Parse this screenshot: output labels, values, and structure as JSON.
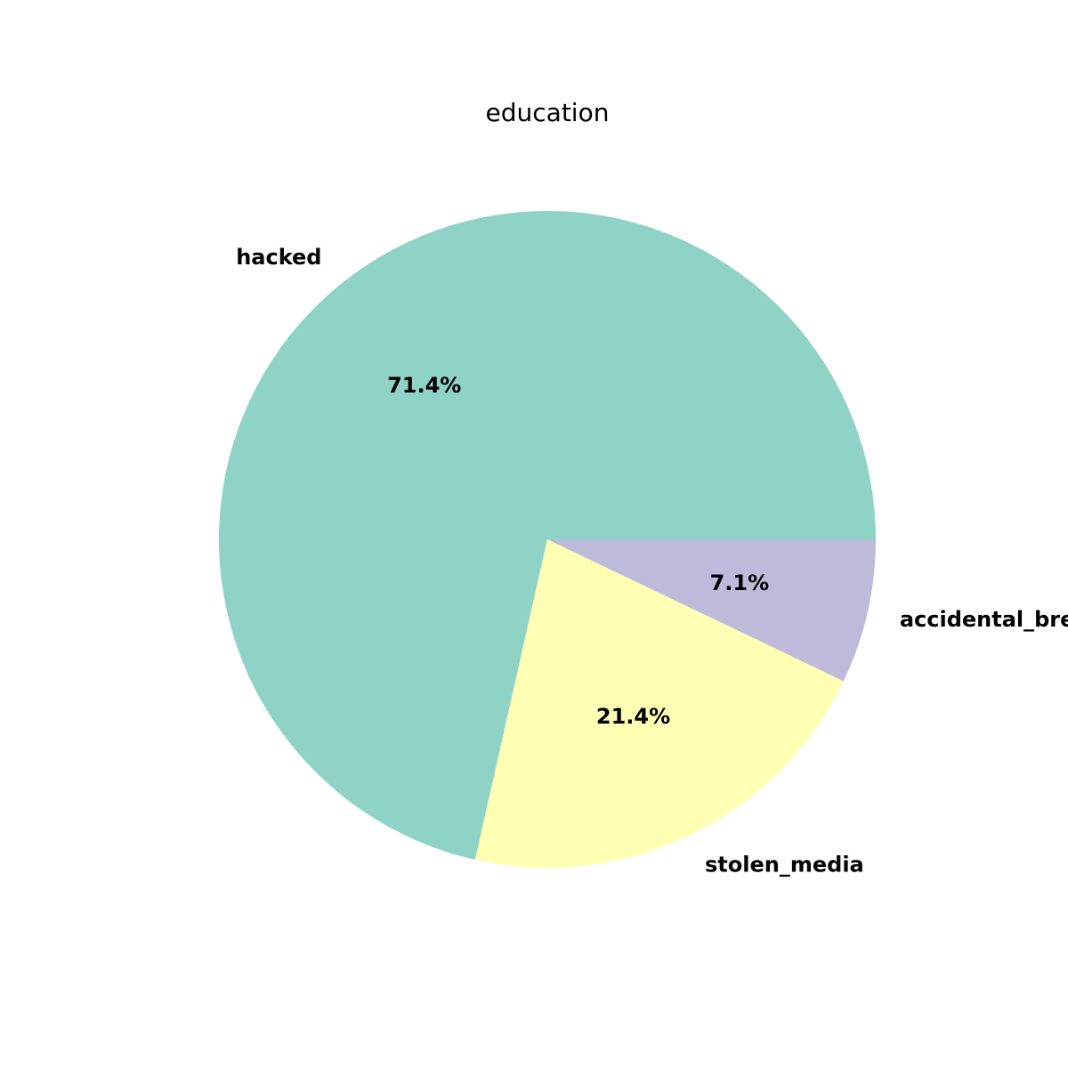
{
  "chart_data": {
    "type": "pie",
    "title": "education",
    "categories": [
      "hacked",
      "stolen_media",
      "accidental_breach"
    ],
    "values": [
      71.4,
      21.4,
      7.1
    ],
    "percent_labels": [
      "71.4%",
      "21.4%",
      "7.1%"
    ],
    "colors": [
      "#8fd3c7",
      "#feffb3",
      "#bebada"
    ],
    "start_angle_deg": 0,
    "direction": "counterclockwise",
    "legend": "none"
  }
}
